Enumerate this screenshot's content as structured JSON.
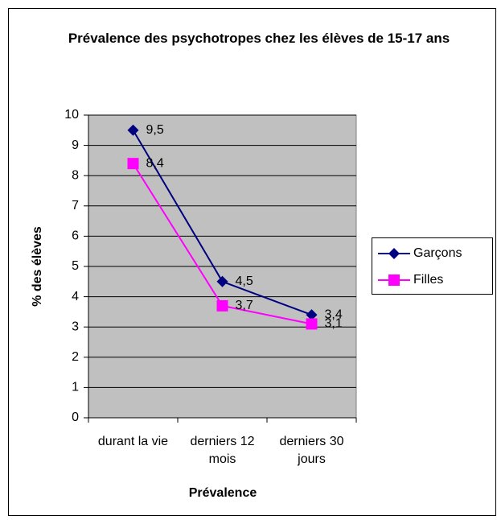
{
  "chart_data": {
    "type": "line",
    "title": "Prévalence des psychotropes chez les élèves de 15-17 ans",
    "x_label": "Prévalence",
    "y_label": "% des élèves",
    "categories": [
      "durant la vie",
      "derniers 12 mois",
      "derniers 30 jours"
    ],
    "series": [
      {
        "name": "Garçons",
        "color": "#000080",
        "marker": "diamond",
        "values": [
          9.5,
          4.5,
          3.4
        ],
        "value_labels": [
          "9,5",
          "4,5",
          "3,4"
        ]
      },
      {
        "name": "Filles",
        "color": "#ff00ff",
        "marker": "square",
        "values": [
          8.4,
          3.7,
          3.1
        ],
        "value_labels": [
          "8,4",
          "3,7",
          "3,1"
        ]
      }
    ],
    "ylim": [
      0,
      10
    ],
    "yticks": [
      0,
      1,
      2,
      3,
      4,
      5,
      6,
      7,
      8,
      9,
      10
    ],
    "grid": true,
    "plot_background": "#c0c0c0",
    "legend": "right"
  }
}
